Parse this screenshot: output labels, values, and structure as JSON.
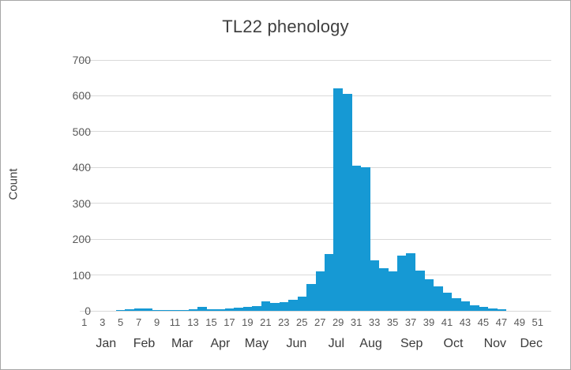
{
  "window": {
    "background": "#ffffff",
    "border_color": "#a6a6a6"
  },
  "chart": {
    "title": "TL22 phenology",
    "ylabel": "Count"
  },
  "chart_data": {
    "type": "bar",
    "title": "TL22 phenology",
    "ylabel": "Count",
    "xlabel": "",
    "ylim": [
      0,
      700
    ],
    "ytick_interval": 100,
    "yticks": [
      0,
      100,
      200,
      300,
      400,
      500,
      600,
      700
    ],
    "xticks": [
      1,
      3,
      5,
      7,
      9,
      11,
      13,
      15,
      17,
      19,
      21,
      23,
      25,
      27,
      29,
      31,
      33,
      35,
      37,
      39,
      41,
      43,
      45,
      47,
      49,
      51
    ],
    "categories": [
      1,
      2,
      3,
      4,
      5,
      6,
      7,
      8,
      9,
      10,
      11,
      12,
      13,
      14,
      15,
      16,
      17,
      18,
      19,
      20,
      21,
      22,
      23,
      24,
      25,
      26,
      27,
      28,
      29,
      30,
      31,
      32,
      33,
      34,
      35,
      36,
      37,
      38,
      39,
      40,
      41,
      42,
      43,
      44,
      45,
      46,
      47,
      48,
      49,
      50,
      51,
      52
    ],
    "values": [
      0,
      0,
      0,
      0,
      2,
      4,
      6,
      6,
      2,
      1,
      2,
      1,
      5,
      10,
      5,
      4,
      7,
      9,
      12,
      13,
      27,
      22,
      24,
      30,
      40,
      75,
      110,
      158,
      620,
      605,
      405,
      400,
      140,
      118,
      110,
      155,
      161,
      113,
      87,
      69,
      50,
      35,
      27,
      15,
      12,
      6,
      5,
      0,
      0,
      0,
      0,
      0
    ],
    "months": [
      {
        "label": "Jan",
        "week": 3.4
      },
      {
        "label": "Feb",
        "week": 7.6
      },
      {
        "label": "Mar",
        "week": 11.8
      },
      {
        "label": "Apr",
        "week": 16.0
      },
      {
        "label": "May",
        "week": 20.0
      },
      {
        "label": "Jun",
        "week": 24.4
      },
      {
        "label": "Jul",
        "week": 28.8
      },
      {
        "label": "Aug",
        "week": 32.6
      },
      {
        "label": "Sep",
        "week": 37.1
      },
      {
        "label": "Oct",
        "week": 41.7
      },
      {
        "label": "Nov",
        "week": 46.3
      },
      {
        "label": "Dec",
        "week": 50.3
      }
    ],
    "bar_color": "#1699D4",
    "gridline_color": "#D9D9D9",
    "tick_color": "#595959",
    "title_color": "#404040",
    "grid": true,
    "legend": false
  }
}
